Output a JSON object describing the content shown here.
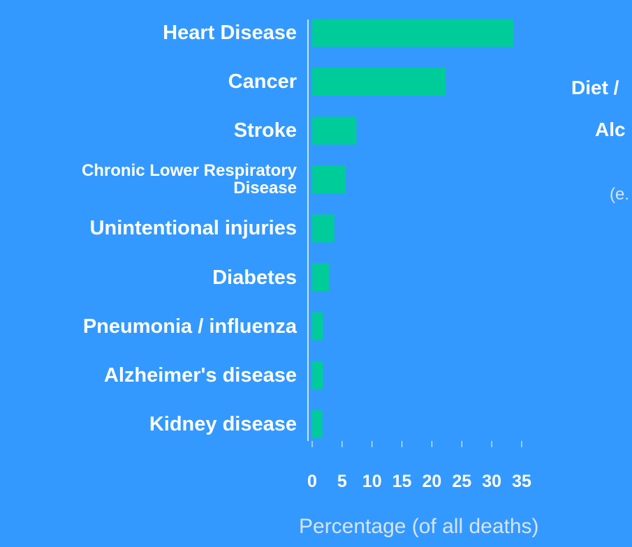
{
  "chart_data": {
    "type": "barh",
    "categories": [
      "Heart Disease",
      "Cancer",
      "Stroke",
      "Chronic Lower Respiratory Disease",
      "Unintentional injuries",
      "Diabetes",
      "Pneumonia / influenza",
      "Alzheimer's disease",
      "Kidney disease"
    ],
    "values": [
      33.6,
      22.3,
      7.4,
      5.6,
      3.7,
      2.8,
      1.8,
      1.8,
      1.7
    ],
    "color": "#00cc99",
    "xlim": [
      0,
      35
    ],
    "xticks": [
      0,
      5,
      10,
      15,
      20,
      25,
      30,
      35
    ],
    "xlabel": "Percentage (of all deaths)",
    "annotations": [
      "Diet /",
      "Alc",
      "(e."
    ]
  }
}
